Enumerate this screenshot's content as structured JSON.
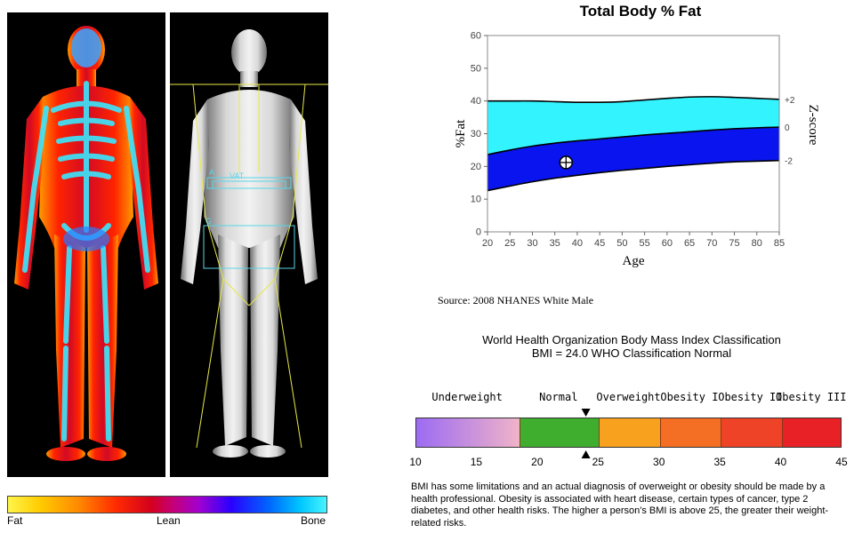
{
  "scans": {
    "left_image": "colorized-dexa-body-composition-scan",
    "right_image": "grayscale-dexa-scan-with-regions",
    "region_labels": [
      "A",
      "VAT",
      "G"
    ],
    "colorbar": {
      "labels": [
        "Fat",
        "Lean",
        "Bone"
      ],
      "colors": [
        "#fff44a",
        "#d4001e",
        "#48f4ff"
      ]
    }
  },
  "chart_data": {
    "type": "area",
    "title": "Total Body % Fat",
    "xlabel": "Age",
    "ylabel": "%Fat",
    "y2label": "Z-score",
    "xlim": [
      20,
      85
    ],
    "ylim": [
      0,
      60
    ],
    "xticks": [
      20,
      25,
      30,
      35,
      40,
      45,
      50,
      55,
      60,
      65,
      70,
      75,
      80,
      85
    ],
    "yticks": [
      0,
      10,
      20,
      30,
      40,
      50,
      60
    ],
    "x": [
      20,
      25,
      30,
      35,
      40,
      45,
      50,
      55,
      60,
      65,
      70,
      75,
      80,
      85
    ],
    "series": [
      {
        "name": "+2",
        "values": [
          40,
          40,
          40,
          39.8,
          39.6,
          39.6,
          39.8,
          40.3,
          40.8,
          41.2,
          41.3,
          41.1,
          40.8,
          40.5
        ]
      },
      {
        "name": "0",
        "values": [
          23.6,
          25.0,
          26.2,
          27.1,
          27.8,
          28.4,
          29.0,
          29.6,
          30.1,
          30.6,
          31.1,
          31.5,
          31.8,
          32.0
        ]
      },
      {
        "name": "-2",
        "values": [
          12.6,
          14.0,
          15.3,
          16.4,
          17.3,
          18.1,
          18.8,
          19.4,
          20.0,
          20.5,
          21.0,
          21.4,
          21.6,
          21.8
        ]
      }
    ],
    "colors": {
      "upper_band": "#33f3ff",
      "lower_band": "#0a14ee"
    },
    "marker": {
      "age": 37.5,
      "value": 21.2
    },
    "source": "Source: 2008 NHANES White Male"
  },
  "bmi": {
    "title_line1": "World Health Organization Body Mass Index Classification",
    "title_line2": "BMI = 24.0 WHO Classification Normal",
    "value": 24.0,
    "scale": [
      10,
      45
    ],
    "ticks": [
      10,
      15,
      20,
      25,
      30,
      35,
      40,
      45
    ],
    "categories": [
      {
        "label": "Underweight",
        "from": 10,
        "to": 18.5,
        "color": "#b46be6"
      },
      {
        "label": "Normal",
        "from": 18.5,
        "to": 25,
        "color": "#3fae2f"
      },
      {
        "label": "Overweight",
        "from": 25,
        "to": 30,
        "color": "#f7a11f"
      },
      {
        "label": "Obesity I",
        "from": 30,
        "to": 35,
        "color": "#f46e24"
      },
      {
        "label": "Obesity II",
        "from": 35,
        "to": 40,
        "color": "#ee4326"
      },
      {
        "label": "Obesity III",
        "from": 40,
        "to": 45,
        "color": "#e82127"
      }
    ],
    "note": "BMI has some limitations and an actual diagnosis of overweight or obesity should be made by a health professional.  Obesity is associated with heart disease, certain types of cancer, type 2 diabetes, and other health risks.  The higher a person's BMI is above 25, the greater their weight-related risks."
  }
}
